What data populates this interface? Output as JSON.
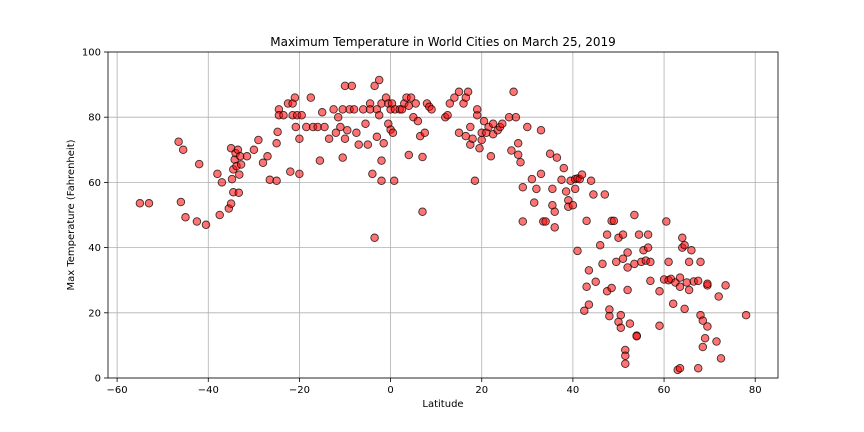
{
  "chart_data": {
    "type": "scatter",
    "title": "Maximum Temperature in World Cities on March 25, 2019",
    "xlabel": "Latitude",
    "ylabel": "Max Temperature (Fahrenheit)",
    "xlim": [
      -62,
      85
    ],
    "ylim": [
      0,
      100
    ],
    "xticks": [
      -60,
      -40,
      -20,
      0,
      20,
      40,
      60,
      80
    ],
    "yticks": [
      0,
      20,
      40,
      60,
      80,
      100
    ],
    "grid": true,
    "marker": {
      "fill": "#ff0000",
      "edge": "#000000",
      "alpha": 0.55
    },
    "series": [
      {
        "points": [
          [
            -55,
            53.6
          ],
          [
            -53,
            53.6
          ],
          [
            -46.5,
            72.5
          ],
          [
            -46,
            54
          ],
          [
            -45.5,
            70
          ],
          [
            -45,
            49.3
          ],
          [
            -42.5,
            48
          ],
          [
            -42,
            65.6
          ],
          [
            -40.5,
            47
          ],
          [
            -38,
            62.6
          ],
          [
            -37.5,
            50
          ],
          [
            -37,
            60
          ],
          [
            -35.5,
            52
          ],
          [
            -35,
            70.5
          ],
          [
            -35,
            53.5
          ],
          [
            -34.8,
            61
          ],
          [
            -34.5,
            57
          ],
          [
            -34.5,
            64
          ],
          [
            -34.2,
            67
          ],
          [
            -34,
            69
          ],
          [
            -33.8,
            65
          ],
          [
            -33.5,
            70
          ],
          [
            -33.3,
            56.8
          ],
          [
            -33.2,
            62.4
          ],
          [
            -33,
            68
          ],
          [
            -32.8,
            65.5
          ],
          [
            -31.5,
            68
          ],
          [
            -30,
            70
          ],
          [
            -29,
            73
          ],
          [
            -28,
            66
          ],
          [
            -27,
            68
          ],
          [
            -26.5,
            60.8
          ],
          [
            -25,
            72
          ],
          [
            -25,
            60.5
          ],
          [
            -24.8,
            75.5
          ],
          [
            -24.5,
            82.4
          ],
          [
            -24.5,
            80.6
          ],
          [
            -23.5,
            80.6
          ],
          [
            -22.5,
            84.2
          ],
          [
            -22,
            63.3
          ],
          [
            -21.5,
            80.6
          ],
          [
            -21.5,
            84.2
          ],
          [
            -21,
            86
          ],
          [
            -20.8,
            77
          ],
          [
            -20.5,
            80.6
          ],
          [
            -20,
            73.4
          ],
          [
            -20,
            62.6
          ],
          [
            -19.5,
            80.6
          ],
          [
            -18.5,
            77
          ],
          [
            -17.5,
            86
          ],
          [
            -17,
            77
          ],
          [
            -16,
            77
          ],
          [
            -15.5,
            66.7
          ],
          [
            -15,
            81.5
          ],
          [
            -14.5,
            77
          ],
          [
            -13.5,
            73.4
          ],
          [
            -12.5,
            82.4
          ],
          [
            -12,
            75.2
          ],
          [
            -11.5,
            80
          ],
          [
            -11,
            77
          ],
          [
            -10.5,
            82.4
          ],
          [
            -10.5,
            67.6
          ],
          [
            -10,
            73.4
          ],
          [
            -10,
            89.6
          ],
          [
            -9.5,
            76
          ],
          [
            -9,
            82.4
          ],
          [
            -8.5,
            89.6
          ],
          [
            -8,
            82.4
          ],
          [
            -7.5,
            75.2
          ],
          [
            -7,
            71.6
          ],
          [
            -6,
            82.4
          ],
          [
            -5.5,
            78
          ],
          [
            -5,
            71.6
          ],
          [
            -4.5,
            84.2
          ],
          [
            -4.5,
            82.4
          ],
          [
            -4,
            62.6
          ],
          [
            -3.5,
            89.6
          ],
          [
            -3.5,
            43
          ],
          [
            -3,
            74
          ],
          [
            -3,
            82.4
          ],
          [
            -2.5,
            91.4
          ],
          [
            -2.5,
            80.6
          ],
          [
            -2,
            84.2
          ],
          [
            -2,
            66.7
          ],
          [
            -2,
            60.5
          ],
          [
            -1.5,
            72
          ],
          [
            -1,
            86
          ],
          [
            -0.5,
            78
          ],
          [
            -0.5,
            84.2
          ],
          [
            0,
            82.4
          ],
          [
            0,
            76.2
          ],
          [
            0.3,
            84.2
          ],
          [
            0.5,
            75.2
          ],
          [
            0.8,
            60.5
          ],
          [
            1,
            82.4
          ],
          [
            2,
            82.4
          ],
          [
            2.5,
            82.4
          ],
          [
            3,
            84.2
          ],
          [
            3.5,
            86
          ],
          [
            4,
            68.4
          ],
          [
            4,
            83.5
          ],
          [
            4.5,
            86
          ],
          [
            5,
            80
          ],
          [
            5.5,
            84.2
          ],
          [
            6,
            78.8
          ],
          [
            6.5,
            74.2
          ],
          [
            7,
            51
          ],
          [
            7,
            67.8
          ],
          [
            7.5,
            75.2
          ],
          [
            8,
            84.2
          ],
          [
            8.5,
            83.2
          ],
          [
            9,
            82.4
          ],
          [
            12,
            80
          ],
          [
            12.5,
            80.6
          ],
          [
            13,
            84.2
          ],
          [
            14,
            86
          ],
          [
            15,
            87.8
          ],
          [
            15,
            75.2
          ],
          [
            16,
            84.2
          ],
          [
            16.5,
            86
          ],
          [
            16.5,
            74.2
          ],
          [
            17,
            87.8
          ],
          [
            17.5,
            77
          ],
          [
            17.5,
            71.6
          ],
          [
            18,
            73.4
          ],
          [
            18.5,
            60.5
          ],
          [
            19,
            80.6
          ],
          [
            19,
            82.4
          ],
          [
            19.5,
            70.5
          ],
          [
            20,
            75.2
          ],
          [
            20,
            73
          ],
          [
            20.5,
            78.8
          ],
          [
            21,
            75.2
          ],
          [
            21.5,
            77
          ],
          [
            22,
            68
          ],
          [
            22.5,
            78
          ],
          [
            22.5,
            74.8
          ],
          [
            23.5,
            76
          ],
          [
            24,
            77
          ],
          [
            24.5,
            78
          ],
          [
            26,
            80
          ],
          [
            26.5,
            69.8
          ],
          [
            27,
            87.8
          ],
          [
            27.5,
            80
          ],
          [
            28,
            72
          ],
          [
            28,
            68.5
          ],
          [
            28.5,
            66.2
          ],
          [
            29,
            58.5
          ],
          [
            29,
            48
          ],
          [
            30,
            77
          ],
          [
            31,
            61
          ],
          [
            31.5,
            53.8
          ],
          [
            32,
            58
          ],
          [
            33,
            62.6
          ],
          [
            33,
            76
          ],
          [
            33.5,
            48
          ],
          [
            34,
            48
          ],
          [
            35,
            68.8
          ],
          [
            35.5,
            53
          ],
          [
            35.5,
            58
          ],
          [
            36,
            51
          ],
          [
            36,
            46.2
          ],
          [
            36.5,
            67.6
          ],
          [
            37.5,
            60.8
          ],
          [
            38,
            64.4
          ],
          [
            38.5,
            57.2
          ],
          [
            39,
            54.5
          ],
          [
            39,
            52.5
          ],
          [
            39.5,
            60.5
          ],
          [
            40,
            53
          ],
          [
            40.5,
            58
          ],
          [
            40.5,
            61
          ],
          [
            41,
            61.2
          ],
          [
            41,
            39
          ],
          [
            41.5,
            61
          ],
          [
            42,
            62.4
          ],
          [
            42.5,
            20.6
          ],
          [
            43,
            28
          ],
          [
            43,
            48.2
          ],
          [
            43.5,
            33
          ],
          [
            43.5,
            22.5
          ],
          [
            44,
            60.5
          ],
          [
            44.5,
            56.3
          ],
          [
            45,
            29.5
          ],
          [
            46,
            40.7
          ],
          [
            46.5,
            35
          ],
          [
            47,
            56.3
          ],
          [
            47.5,
            44
          ],
          [
            47.5,
            26.6
          ],
          [
            48,
            21
          ],
          [
            48,
            19
          ],
          [
            48.5,
            48.2
          ],
          [
            48.5,
            27.6
          ],
          [
            49,
            48.2
          ],
          [
            49.5,
            35.6
          ],
          [
            50,
            43
          ],
          [
            50,
            17.2
          ],
          [
            50.5,
            19.3
          ],
          [
            50.5,
            15.4
          ],
          [
            51,
            44
          ],
          [
            51,
            36.6
          ],
          [
            51.5,
            8.6
          ],
          [
            51.5,
            6.8
          ],
          [
            51.5,
            4.4
          ],
          [
            52,
            38.5
          ],
          [
            52,
            33.9
          ],
          [
            52,
            27
          ],
          [
            52.5,
            16.7
          ],
          [
            53.5,
            50
          ],
          [
            53.5,
            35
          ],
          [
            54,
            13
          ],
          [
            54,
            12.8
          ],
          [
            54.5,
            44
          ],
          [
            55,
            35.6
          ],
          [
            55.5,
            39.2
          ],
          [
            56,
            36
          ],
          [
            56.5,
            44
          ],
          [
            56.5,
            40
          ],
          [
            57,
            29.8
          ],
          [
            57,
            35.6
          ],
          [
            59,
            26.6
          ],
          [
            59,
            16
          ],
          [
            60,
            30.2
          ],
          [
            60.5,
            48
          ],
          [
            61,
            35.6
          ],
          [
            61,
            30
          ],
          [
            61.5,
            30.4
          ],
          [
            62,
            22.8
          ],
          [
            62.5,
            29.3
          ],
          [
            63,
            2.5
          ],
          [
            63.5,
            3
          ],
          [
            63.5,
            30.8
          ],
          [
            63.5,
            28
          ],
          [
            64,
            43
          ],
          [
            64,
            40
          ],
          [
            64.5,
            21.2
          ],
          [
            64.5,
            40.7
          ],
          [
            65,
            29.3
          ],
          [
            65.5,
            35.6
          ],
          [
            65.5,
            27
          ],
          [
            66,
            39.2
          ],
          [
            66.5,
            29.6
          ],
          [
            67.5,
            3
          ],
          [
            67.5,
            29.8
          ],
          [
            68,
            19.3
          ],
          [
            68,
            35.6
          ],
          [
            68.5,
            17.6
          ],
          [
            68.5,
            9.5
          ],
          [
            69,
            12.2
          ],
          [
            69.5,
            28.4
          ],
          [
            69.5,
            28.9
          ],
          [
            69.5,
            15.8
          ],
          [
            71.5,
            11.2
          ],
          [
            72,
            25
          ],
          [
            72.5,
            6
          ],
          [
            73.5,
            28.4
          ],
          [
            78,
            19.3
          ]
        ]
      }
    ]
  }
}
